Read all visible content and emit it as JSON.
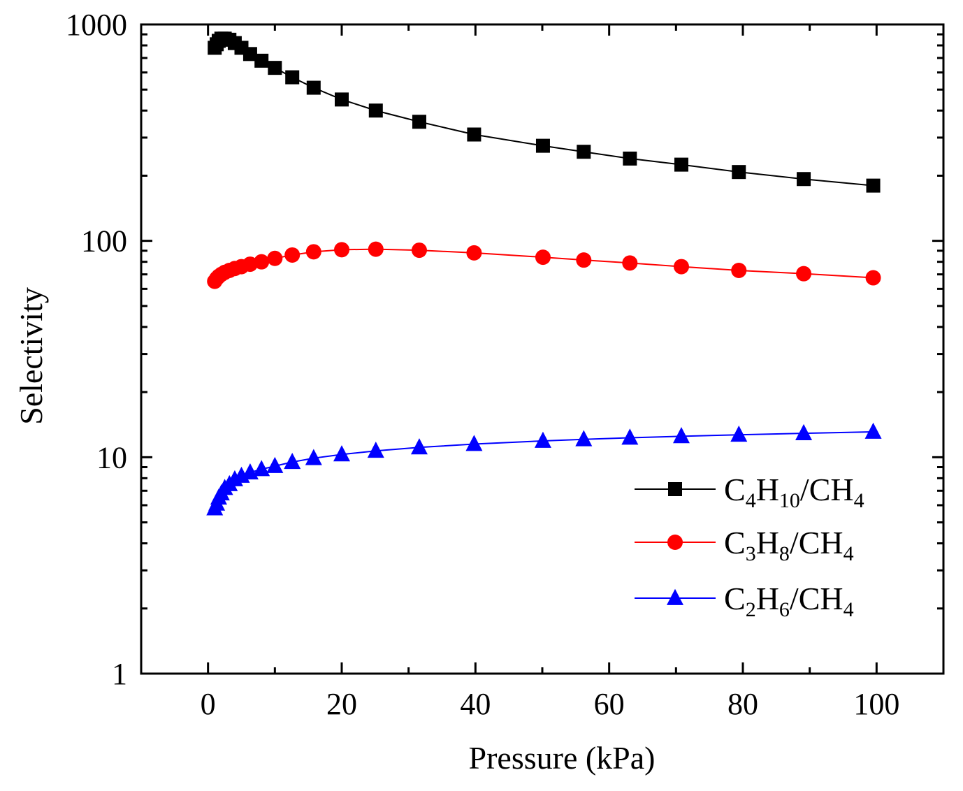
{
  "chart_data": {
    "type": "line",
    "xlabel": "Pressure (kPa)",
    "ylabel": "Selectivity",
    "xlim": [
      -10,
      110
    ],
    "ylim": [
      1,
      1000
    ],
    "yscale": "log",
    "xticks": [
      0,
      20,
      40,
      60,
      80,
      100
    ],
    "yticks": [
      1,
      10,
      100,
      1000
    ],
    "xtick_labels": [
      "0",
      "20",
      "40",
      "60",
      "80",
      "100"
    ],
    "ytick_labels": [
      "1",
      "10",
      "100",
      "1000"
    ],
    "grid": false,
    "legend_position": "bottom-right",
    "x": [
      1,
      1.3,
      1.6,
      2,
      2.5,
      3.2,
      4,
      5,
      6.3,
      8,
      10,
      12.6,
      15.8,
      20,
      25.1,
      31.6,
      39.8,
      50.1,
      56.2,
      63.1,
      70.8,
      79.4,
      89.1,
      99.5
    ],
    "series": [
      {
        "name": "C4H10/CH4",
        "legend": {
          "parts": [
            [
              "C",
              ""
            ],
            [
              "4",
              "sub"
            ],
            [
              "H",
              ""
            ],
            [
              "10",
              "sub"
            ],
            [
              "/CH",
              ""
            ],
            [
              "4",
              "sub"
            ]
          ]
        },
        "color": "#000000",
        "marker": "square",
        "values": [
          780,
          810,
          840,
          860,
          860,
          850,
          820,
          780,
          730,
          680,
          630,
          570,
          510,
          450,
          400,
          355,
          310,
          275,
          258,
          240,
          225,
          208,
          193,
          180
        ]
      },
      {
        "name": "C3H8/CH4",
        "legend": {
          "parts": [
            [
              "C",
              ""
            ],
            [
              "3",
              "sub"
            ],
            [
              "H",
              ""
            ],
            [
              "8",
              "sub"
            ],
            [
              "/CH",
              ""
            ],
            [
              "4",
              "sub"
            ]
          ]
        },
        "color": "#ff0000",
        "marker": "circle",
        "values": [
          65,
          67,
          68.5,
          70,
          71.5,
          73,
          74.5,
          76,
          78,
          80,
          83,
          86,
          89,
          91,
          91.5,
          90.5,
          88,
          84,
          81.5,
          79,
          76,
          73,
          70.5,
          67.5
        ]
      },
      {
        "name": "C2H6/CH4",
        "legend": {
          "parts": [
            [
              "C",
              ""
            ],
            [
              "2",
              "sub"
            ],
            [
              "H",
              ""
            ],
            [
              "6",
              "sub"
            ],
            [
              "/CH",
              ""
            ],
            [
              "4",
              "sub"
            ]
          ]
        },
        "color": "#0000ff",
        "marker": "triangle",
        "values": [
          5.8,
          6.1,
          6.5,
          6.8,
          7.2,
          7.5,
          7.9,
          8.2,
          8.5,
          8.8,
          9.1,
          9.5,
          9.9,
          10.3,
          10.7,
          11.1,
          11.5,
          11.9,
          12.1,
          12.3,
          12.5,
          12.7,
          12.9,
          13.1
        ]
      }
    ]
  }
}
